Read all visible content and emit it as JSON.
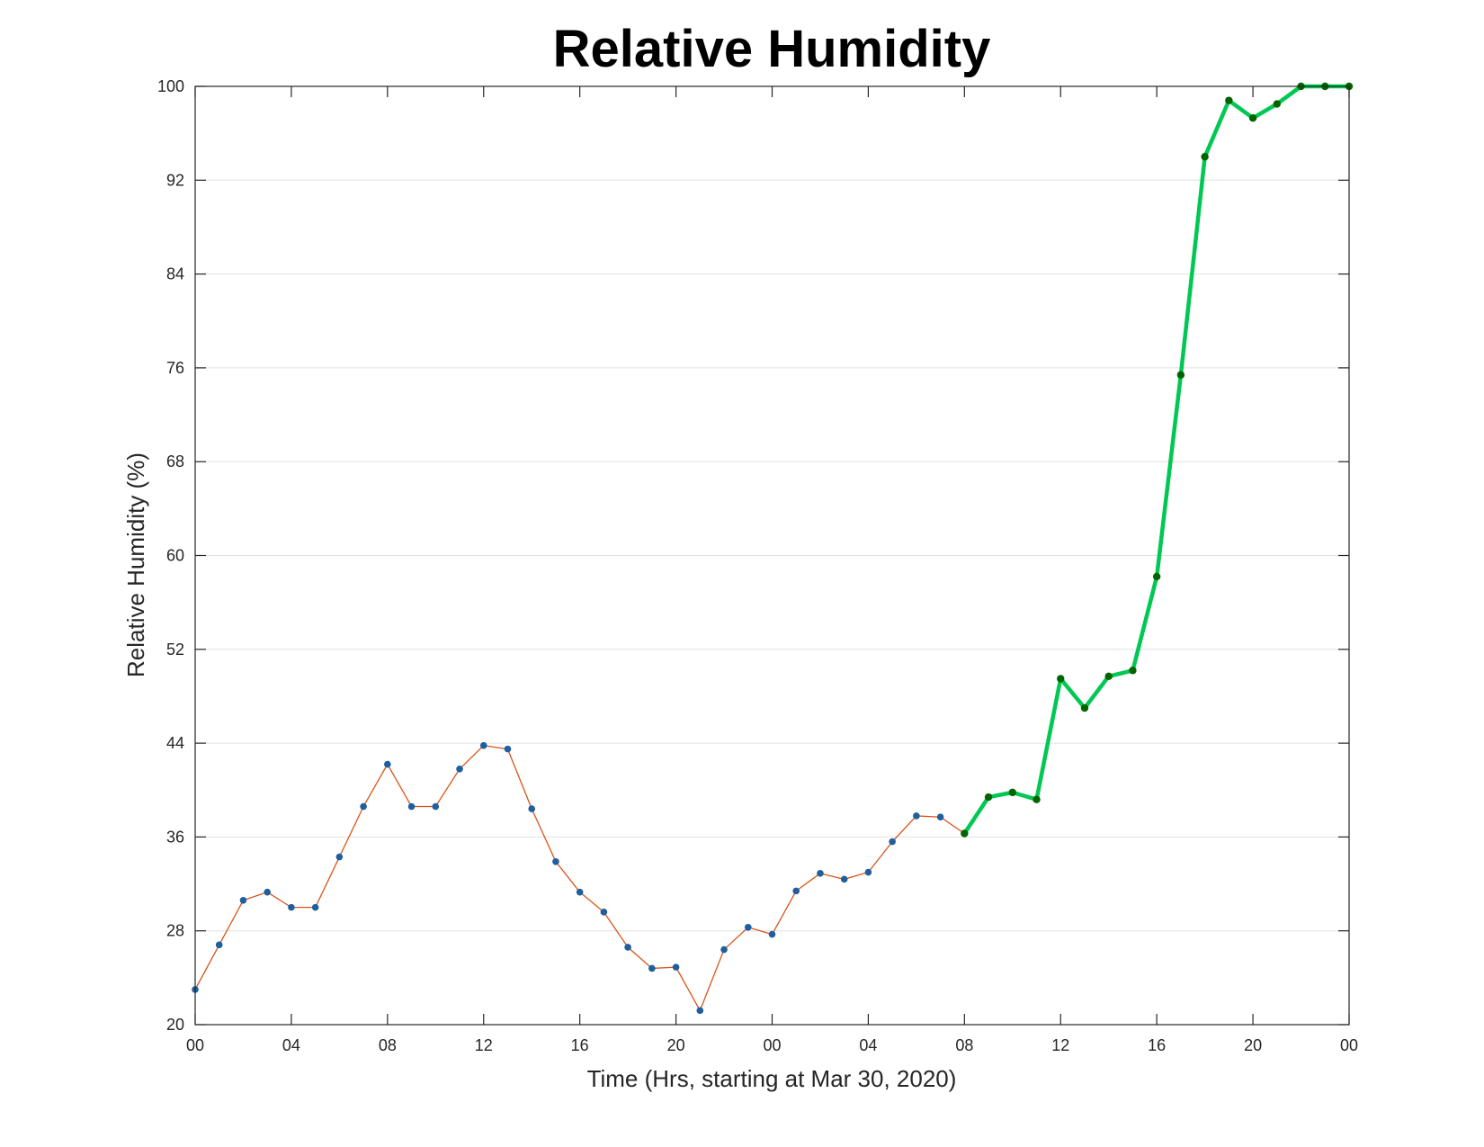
{
  "chart_data": {
    "type": "line",
    "title": "Relative Humidity",
    "xlabel": "Time (Hrs, starting at Mar 30, 2020)",
    "ylabel": "Relative Humidity (%)",
    "x_unit": "hours",
    "xlim": [
      0,
      48
    ],
    "ylim": [
      20,
      100
    ],
    "x_ticks": [
      0,
      4,
      8,
      12,
      16,
      20,
      24,
      28,
      32,
      36,
      40,
      44,
      48
    ],
    "x_tick_labels": [
      "00",
      "04",
      "08",
      "12",
      "16",
      "20",
      "00",
      "04",
      "08",
      "12",
      "16",
      "20",
      "00"
    ],
    "y_ticks": [
      20,
      28,
      36,
      44,
      52,
      60,
      68,
      76,
      84,
      92,
      100
    ],
    "y_tick_labels": [
      "20",
      "28",
      "36",
      "44",
      "52",
      "60",
      "68",
      "76",
      "84",
      "92",
      "100"
    ],
    "grid": "horizontal",
    "colors": {
      "observed_line": "#d95319",
      "observed_marker": "#1f5f9e",
      "forecast_line": "#00c853",
      "forecast_marker": "#006400",
      "grid": "#e0e0e0",
      "axis": "#262626"
    },
    "series": [
      {
        "x": [
          0,
          1,
          2,
          3,
          4,
          5,
          6,
          7,
          8,
          9,
          10,
          11,
          12,
          13,
          14,
          15,
          16,
          17,
          18,
          19,
          20,
          21,
          22,
          23,
          24,
          25,
          26,
          27,
          28,
          29,
          30,
          31,
          32
        ],
        "y": [
          23.0,
          26.8,
          30.6,
          31.3,
          30.0,
          30.0,
          34.3,
          38.6,
          42.2,
          38.6,
          38.6,
          41.8,
          43.8,
          43.5,
          38.4,
          33.9,
          31.3,
          29.6,
          26.6,
          24.8,
          24.9,
          21.2,
          26.4,
          28.3,
          27.7,
          31.4,
          32.9,
          32.4,
          33.0,
          35.6,
          37.8,
          37.7,
          36.3
        ]
      },
      {
        "x": [
          32,
          33,
          34,
          35,
          36,
          37,
          38,
          39,
          40,
          41,
          42,
          43,
          44,
          45,
          46,
          47,
          48
        ],
        "y": [
          36.3,
          39.4,
          39.8,
          39.2,
          49.5,
          47.0,
          49.7,
          50.2,
          58.2,
          75.4,
          94.0,
          98.8,
          97.3,
          98.5,
          100,
          100,
          100
        ]
      }
    ]
  }
}
